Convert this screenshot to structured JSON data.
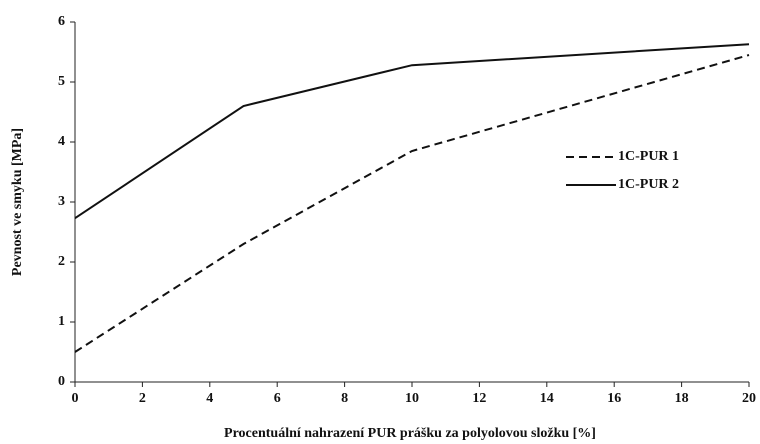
{
  "chart_data": {
    "type": "line",
    "x_label": "Procentuální nahrazení PUR prášku za polyolovou složku [%]",
    "y_label": "Pevnost ve smyku [MPa]",
    "x": [
      0,
      5,
      10,
      20
    ],
    "series": [
      {
        "name": "1C-PUR 1",
        "color": "#111111",
        "line_style": "dashed",
        "values": [
          0.5,
          2.3,
          3.85,
          5.45
        ]
      },
      {
        "name": "1C-PUR 2",
        "color": "#111111",
        "line_style": "solid",
        "values": [
          2.73,
          4.6,
          5.28,
          5.63
        ]
      }
    ],
    "xlim": [
      0,
      20
    ],
    "xticks": [
      0,
      2,
      4,
      6,
      8,
      10,
      12,
      14,
      16,
      18,
      20
    ],
    "ylim": [
      0,
      6
    ],
    "yticks": [
      0,
      1,
      2,
      3,
      4,
      5,
      6
    ],
    "grid": false,
    "legend": "right"
  }
}
